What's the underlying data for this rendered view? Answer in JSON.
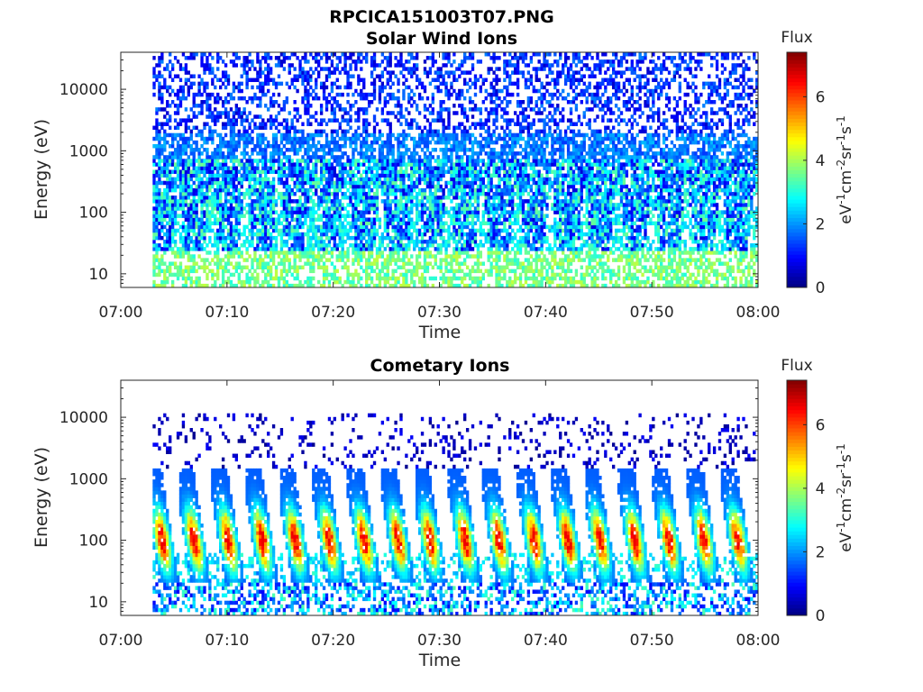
{
  "figure_title": "RPCICA151003T07.PNG",
  "chart_data": [
    {
      "type": "heatmap",
      "title": "Solar Wind Ions",
      "xlabel": "Time",
      "ylabel": "Energy (eV)",
      "x_ticks": [
        "07:00",
        "07:10",
        "07:20",
        "07:30",
        "07:40",
        "07:50",
        "08:00"
      ],
      "xlim": [
        "07:00",
        "08:00"
      ],
      "y_scale": "log",
      "y_ticks": [
        "10",
        "100",
        "1000",
        "10000"
      ],
      "ylim": [
        6,
        40000
      ],
      "data_start": "07:03",
      "data_end": "08:00",
      "colorbar": {
        "title": "Flux",
        "label": "eV-1cm-2sr-1s-1",
        "ticks": [
          "0",
          "2",
          "4",
          "6"
        ],
        "range": [
          0,
          7.4
        ],
        "colormap": "jet"
      },
      "sweep_times_min": [
        3.8,
        6.8,
        10.0,
        13.2,
        16.3,
        19.5,
        22.8,
        26.0,
        29.0,
        32.3,
        35.5,
        38.8,
        42.0,
        45.0,
        48.3,
        51.5,
        54.8,
        58.0
      ],
      "layers": [
        {
          "energy_range_eV": [
            2000,
            40000
          ],
          "flux": 1.0
        },
        {
          "energy_range_eV": [
            700,
            2000
          ],
          "flux": 1.8
        },
        {
          "energy_range_eV": [
            25,
            700
          ],
          "flux": 2.7,
          "note": "periodic sweep bursts"
        },
        {
          "energy_range_eV": [
            6,
            25
          ],
          "flux": 3.5
        }
      ]
    },
    {
      "type": "heatmap",
      "title": "Cometary Ions",
      "xlabel": "Time",
      "ylabel": "Energy (eV)",
      "x_ticks": [
        "07:00",
        "07:10",
        "07:20",
        "07:30",
        "07:40",
        "07:50",
        "08:00"
      ],
      "xlim": [
        "07:00",
        "08:00"
      ],
      "y_scale": "log",
      "y_ticks": [
        "10",
        "100",
        "1000",
        "10000"
      ],
      "ylim": [
        6,
        40000
      ],
      "data_start": "07:03",
      "data_end": "08:00",
      "colorbar": {
        "title": "Flux",
        "label": "eV-1cm-2sr-1s-1",
        "ticks": [
          "0",
          "2",
          "4",
          "6"
        ],
        "range": [
          0,
          7.4
        ],
        "colormap": "jet"
      },
      "sweep_times_min": [
        3.8,
        6.8,
        10.0,
        13.2,
        16.3,
        19.5,
        22.8,
        26.0,
        29.0,
        32.3,
        35.5,
        38.8,
        42.0,
        45.0,
        48.3,
        51.5,
        54.8,
        58.0
      ],
      "layers": [
        {
          "energy_range_eV": [
            1500,
            12000
          ],
          "flux": 0.3,
          "note": "sparse"
        },
        {
          "energy_range_eV": [
            20,
            900
          ],
          "peak_energy_eV": 100,
          "peak_flux": 5.6,
          "note": "periodic sweep bursts"
        },
        {
          "energy_range_eV": [
            6,
            20
          ],
          "flux": 2.5
        }
      ]
    }
  ]
}
